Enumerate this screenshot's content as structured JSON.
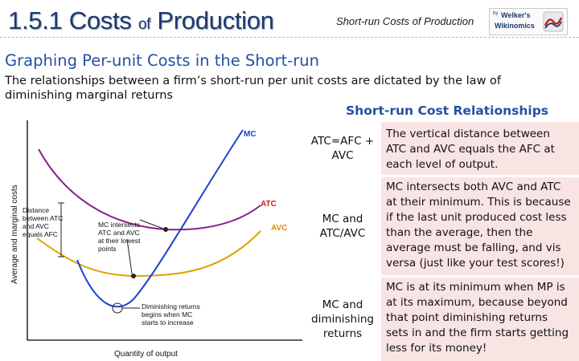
{
  "header": {
    "title_main": "1.5.1 Costs ",
    "title_of": "of",
    "title_end": " Production",
    "subtitle": "Short-run Costs of Production",
    "logo": {
      "by": "by",
      "line1": "Welker's",
      "line2": "Wikinomics",
      "icon": "wikinomics-logo-mark"
    }
  },
  "slide": {
    "heading": "Graphing Per-unit Costs in the Short-run",
    "intro": "The relationships between a firm’s short-run per unit costs are dictated by the law of diminishing marginal returns"
  },
  "graph": {
    "y_axis_label": "Average and marginal costs",
    "x_axis_label": "Quantity of output",
    "curve_labels": {
      "mc": "MC",
      "atc": "ATC",
      "avc": "AVC"
    },
    "annotations": {
      "distance": [
        "Distance",
        "between ATC",
        "and AVC",
        "equals AFC"
      ],
      "intersects": [
        "MC intersects",
        "ATC and AVC",
        "at their lowest",
        "points"
      ],
      "diminishing": [
        "Diminishing returns",
        "begins when MC",
        "starts to increase"
      ]
    },
    "colors": {
      "mc": "#1f3fd0",
      "atc": "#8a1f8a",
      "avc": "#e2a000",
      "text_mc": "#1f3fd0",
      "text_atc": "#cc1a1a",
      "text_avc": "#e28a00"
    }
  },
  "table": {
    "title": "Short-run Cost Relationships",
    "rows": [
      {
        "term": "ATC=AFC + AVC",
        "description": "The vertical distance between ATC and AVC equals the AFC at each level of output."
      },
      {
        "term": "MC and ATC/AVC",
        "description": "MC intersects both AVC and ATC at their minimum. This is because if the last unit produced cost less than the average, then the average must be falling, and vis versa (just like your test scores!)"
      },
      {
        "term": "MC and diminishing returns",
        "description": "MC is at its minimum when MP is at its maximum, because beyond that point diminishing returns sets in and the firm starts getting less for its money!"
      }
    ],
    "colors": {
      "description_bg": "#f9e4e4"
    }
  }
}
